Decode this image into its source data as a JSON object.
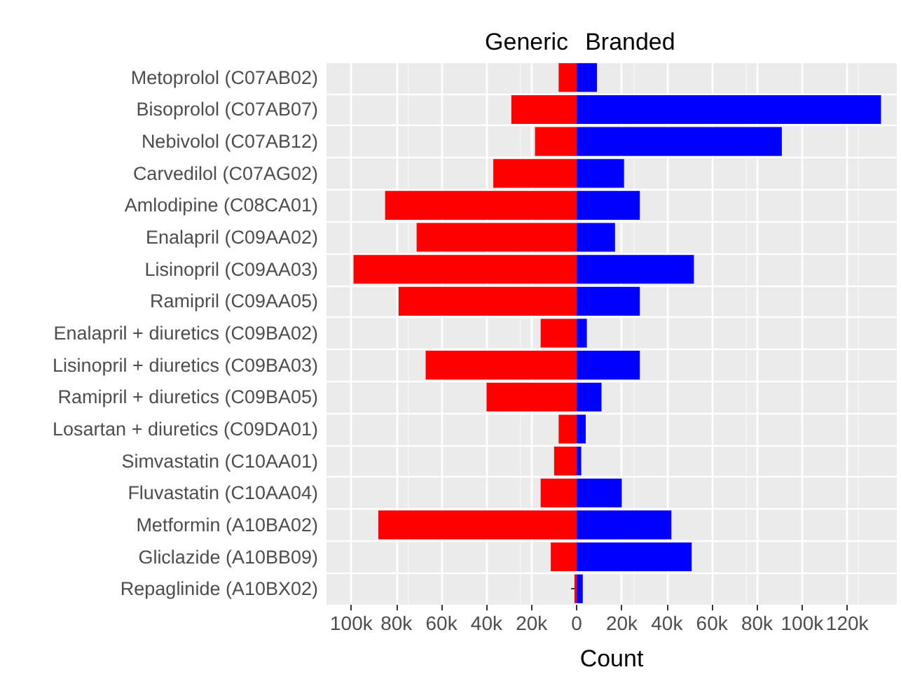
{
  "chart_data": {
    "type": "bar",
    "orientation": "horizontal",
    "stacked": true,
    "xlabel": "Count",
    "categories": [
      "Metoprolol (C07AB02)",
      "Bisoprolol (C07AB07)",
      "Nebivolol (C07AB12)",
      "Carvedilol (C07AG02)",
      "Amlodipine (C08CA01)",
      "Enalapril (C09AA02)",
      "Lisinopril (C09AA03)",
      "Ramipril (C09AA05)",
      "Enalapril + diuretics (C09BA02)",
      "Lisinopril + diuretics (C09BA03)",
      "Ramipril + diuretics (C09BA05)",
      "Losartan + diuretics (C09DA01)",
      "Simvastatin (C10AA01)",
      "Fluvastatin (C10AA04)",
      "Metformin (A10BA02)",
      "Gliclazide (A10BB09)",
      "Repaglinide (A10BX02)"
    ],
    "series": [
      {
        "name": "Generic",
        "color": "#ff0000",
        "values": [
          -8000,
          -29000,
          -18500,
          -37000,
          -85000,
          -71000,
          -99000,
          -79000,
          -16000,
          -67000,
          -40000,
          -8000,
          -10000,
          -16000,
          -88000,
          -11500,
          -1000
        ]
      },
      {
        "name": "Branded",
        "color": "#0000ff",
        "values": [
          9000,
          135000,
          91000,
          21000,
          28000,
          17000,
          52000,
          28000,
          4500,
          28000,
          11000,
          4000,
          2000,
          20000,
          42000,
          51000,
          2700
        ]
      }
    ],
    "xlim": [
      -111000,
      142000
    ],
    "xticks": [
      {
        "value": -100000,
        "label": "100k"
      },
      {
        "value": -80000,
        "label": "80k"
      },
      {
        "value": -60000,
        "label": "60k"
      },
      {
        "value": -40000,
        "label": "40k"
      },
      {
        "value": -20000,
        "label": "20k"
      },
      0,
      {
        "value": 20000,
        "label": "20k"
      },
      {
        "value": 40000,
        "label": "40k"
      },
      {
        "value": 60000,
        "label": "60k"
      },
      {
        "value": 80000,
        "label": "80k"
      },
      {
        "value": 100000,
        "label": "100k"
      },
      {
        "value": 120000,
        "label": "120k"
      }
    ],
    "grid": true,
    "legend": false
  }
}
